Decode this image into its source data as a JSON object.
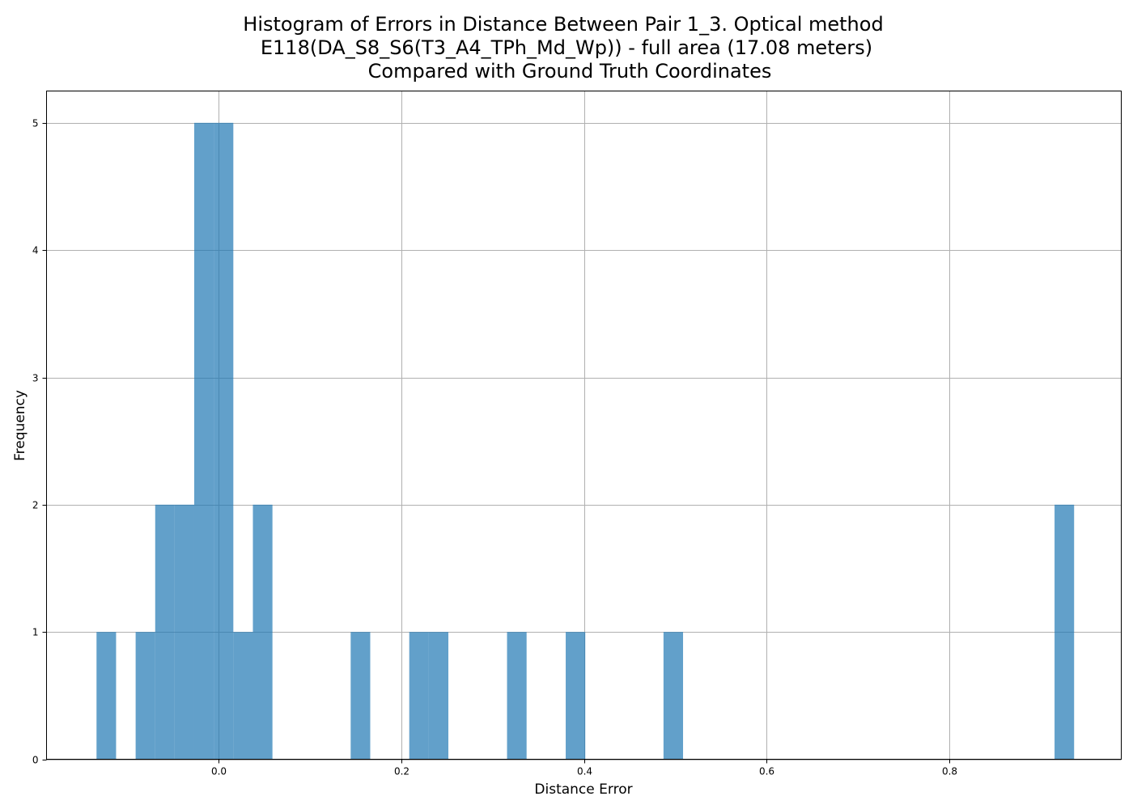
{
  "chart_data": {
    "type": "bar",
    "title_lines": [
      "Histogram of Errors in Distance Between Pair 1_3. Optical method",
      "E118(DA_S8_S6(T3_A4_TPh_Md_Wp)) - full area (17.08 meters)",
      "Compared with Ground Truth Coordinates"
    ],
    "xlabel": "Distance Error",
    "ylabel": "Frequency",
    "xlim": [
      -0.188,
      0.988
    ],
    "ylim": [
      0,
      5.25
    ],
    "xticks": [
      0.0,
      0.2,
      0.4,
      0.6,
      0.8
    ],
    "xtick_labels": [
      "0.0",
      "0.2",
      "0.4",
      "0.6",
      "0.8"
    ],
    "yticks": [
      0,
      1,
      2,
      3,
      4,
      5
    ],
    "ytick_labels": [
      "0",
      "1",
      "2",
      "3",
      "4",
      "5"
    ],
    "grid": true,
    "color": "#1f77b4",
    "bars": [
      {
        "x0": -0.1333,
        "x1": -0.1119,
        "count": 1
      },
      {
        "x0": -0.0905,
        "x1": -0.0691,
        "count": 1
      },
      {
        "x0": -0.0691,
        "x1": -0.0478,
        "count": 2
      },
      {
        "x0": -0.0478,
        "x1": -0.0264,
        "count": 2
      },
      {
        "x0": -0.0264,
        "x1": -0.005,
        "count": 5
      },
      {
        "x0": -0.005,
        "x1": 0.0164,
        "count": 5
      },
      {
        "x0": 0.0164,
        "x1": 0.0378,
        "count": 1
      },
      {
        "x0": 0.0378,
        "x1": 0.0592,
        "count": 2
      },
      {
        "x0": 0.1448,
        "x1": 0.1662,
        "count": 1
      },
      {
        "x0": 0.2089,
        "x1": 0.2303,
        "count": 1
      },
      {
        "x0": 0.2303,
        "x1": 0.2517,
        "count": 1
      },
      {
        "x0": 0.3159,
        "x1": 0.3373,
        "count": 1
      },
      {
        "x0": 0.3801,
        "x1": 0.4015,
        "count": 1
      },
      {
        "x0": 0.4871,
        "x1": 0.5085,
        "count": 1
      },
      {
        "x0": 0.915,
        "x1": 0.9364,
        "count": 2
      }
    ]
  }
}
